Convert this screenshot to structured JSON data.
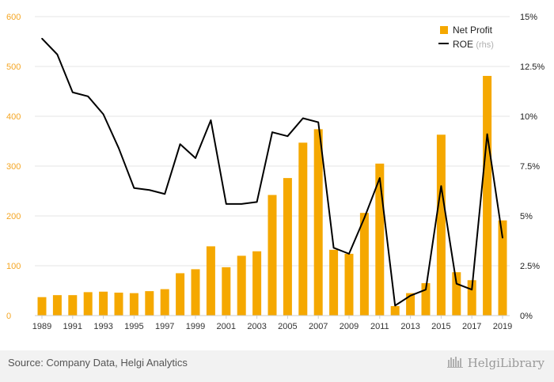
{
  "chart_data": {
    "type": "bar+line",
    "categories": [
      "1989",
      "1990",
      "1991",
      "1992",
      "1993",
      "1994",
      "1995",
      "1996",
      "1997",
      "1998",
      "1999",
      "2000",
      "2001",
      "2002",
      "2003",
      "2004",
      "2005",
      "2006",
      "2007",
      "2008",
      "2009",
      "2010",
      "2011",
      "2012",
      "2013",
      "2014",
      "2015",
      "2016",
      "2017",
      "2018",
      "2019"
    ],
    "x_tick_labels": [
      "1989",
      "1991",
      "1993",
      "1995",
      "1997",
      "1999",
      "2001",
      "2003",
      "2005",
      "2007",
      "2009",
      "2011",
      "2013",
      "2015",
      "2017",
      "2019"
    ],
    "series": [
      {
        "name": "Net Profit",
        "type": "bar",
        "axis": "left",
        "color": "#f5a800",
        "values": [
          37,
          41,
          41,
          47,
          48,
          46,
          45,
          49,
          53,
          85,
          93,
          139,
          97,
          120,
          129,
          242,
          276,
          347,
          374,
          132,
          124,
          206,
          305,
          19,
          45,
          65,
          363,
          87,
          71,
          481,
          191
        ]
      },
      {
        "name": "ROE",
        "name_suffix": "(rhs)",
        "type": "line",
        "axis": "right",
        "color": "#000000",
        "values": [
          13.9,
          13.1,
          11.2,
          11.0,
          10.1,
          8.4,
          6.4,
          6.3,
          6.1,
          8.6,
          7.9,
          9.8,
          5.6,
          5.6,
          5.7,
          9.2,
          9.0,
          9.9,
          9.7,
          3.4,
          3.1,
          4.9,
          6.9,
          0.5,
          1.0,
          1.3,
          6.5,
          1.6,
          1.3,
          9.1,
          3.9
        ]
      }
    ],
    "left_axis": {
      "min": 0,
      "max": 600,
      "ticks": [
        0,
        100,
        200,
        300,
        400,
        500,
        600
      ],
      "labels": [
        "0",
        "100",
        "200",
        "300",
        "400",
        "500",
        "600"
      ]
    },
    "right_axis": {
      "min": 0,
      "max": 15,
      "ticks": [
        0,
        2.5,
        5,
        7.5,
        10,
        12.5,
        15
      ],
      "labels": [
        "0%",
        "2.5%",
        "5%",
        "7.5%",
        "10%",
        "12.5%",
        "15%"
      ]
    },
    "grid": "horizontal",
    "legend_position": "top-right"
  },
  "legend": {
    "net_profit_label": "Net Profit",
    "roe_label": "ROE",
    "roe_suffix": "(rhs)"
  },
  "footer": {
    "source": "Source: Company Data, Helgi Analytics",
    "brand": "HelgiLibrary"
  },
  "colors": {
    "bar": "#f5a800",
    "line": "#000000",
    "grid": "#e6e6e6",
    "left_ticks": "#f5a623",
    "footer_bg": "#f2f2f2"
  }
}
